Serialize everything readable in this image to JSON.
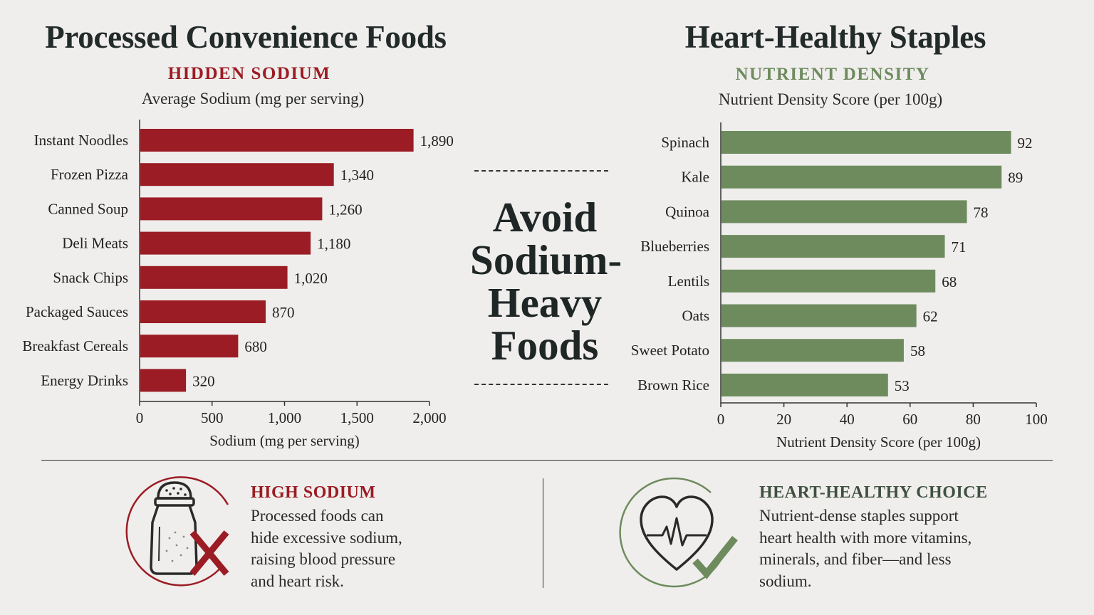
{
  "left_panel": {
    "title": "Processed Convenience Foods",
    "kicker": "HIDDEN SODIUM",
    "subtitle": "Average Sodium (mg per serving)",
    "accent": "#9b1c24"
  },
  "right_panel": {
    "title": "Heart-Healthy Staples",
    "kicker": "NUTRIENT DENSITY",
    "subtitle": "Nutrient Density Score (per 100g)",
    "accent": "#6e8b5e"
  },
  "center": {
    "lines": [
      "Avoid",
      "Sodium-",
      "Heavy",
      "Foods"
    ]
  },
  "chart_data": [
    {
      "type": "bar",
      "orientation": "horizontal",
      "categories": [
        "Instant Noodles",
        "Frozen Pizza",
        "Canned Soup",
        "Deli Meats",
        "Snack Chips",
        "Packaged Sauces",
        "Breakfast Cereals",
        "Energy Drinks"
      ],
      "values": [
        1890,
        1340,
        1260,
        1180,
        1020,
        870,
        680,
        320
      ],
      "value_labels": [
        "1,890",
        "1,340",
        "1,260",
        "1,180",
        "1,020",
        "870",
        "680",
        "320"
      ],
      "xlabel": "Sodium (mg per serving)",
      "xlim": [
        0,
        2000
      ],
      "ticks": [
        0,
        500,
        1000,
        1500,
        2000
      ],
      "tick_labels": [
        "0",
        "500",
        "1,000",
        "1,500",
        "2,000"
      ],
      "color": "#9b1c24",
      "grid": false
    },
    {
      "type": "bar",
      "orientation": "horizontal",
      "categories": [
        "Spinach",
        "Kale",
        "Quinoa",
        "Blueberries",
        "Lentils",
        "Oats",
        "Sweet Potato",
        "Brown Rice"
      ],
      "values": [
        92,
        89,
        78,
        71,
        68,
        62,
        58,
        53
      ],
      "value_labels": [
        "92",
        "89",
        "78",
        "71",
        "68",
        "62",
        "58",
        "53"
      ],
      "xlabel": "Nutrient Density Score (per 100g)",
      "xlim": [
        0,
        100
      ],
      "ticks": [
        0,
        20,
        40,
        60,
        80,
        100
      ],
      "tick_labels": [
        "0",
        "20",
        "40",
        "60",
        "80",
        "100"
      ],
      "color": "#6e8b5e",
      "grid": false
    }
  ],
  "footer": {
    "left": {
      "icon": "salt-shaker-x-icon",
      "title": "HIGH SODIUM",
      "lines": [
        "Processed foods can",
        "hide excessive sodium,",
        "raising blood pressure",
        "and heart risk."
      ]
    },
    "right": {
      "icon": "heart-check-icon",
      "title": "HEART-HEALTHY CHOICE",
      "lines": [
        "Nutrient-dense staples support",
        "heart health with more vitamins,",
        "minerals, and fiber—and less",
        "sodium."
      ]
    }
  }
}
